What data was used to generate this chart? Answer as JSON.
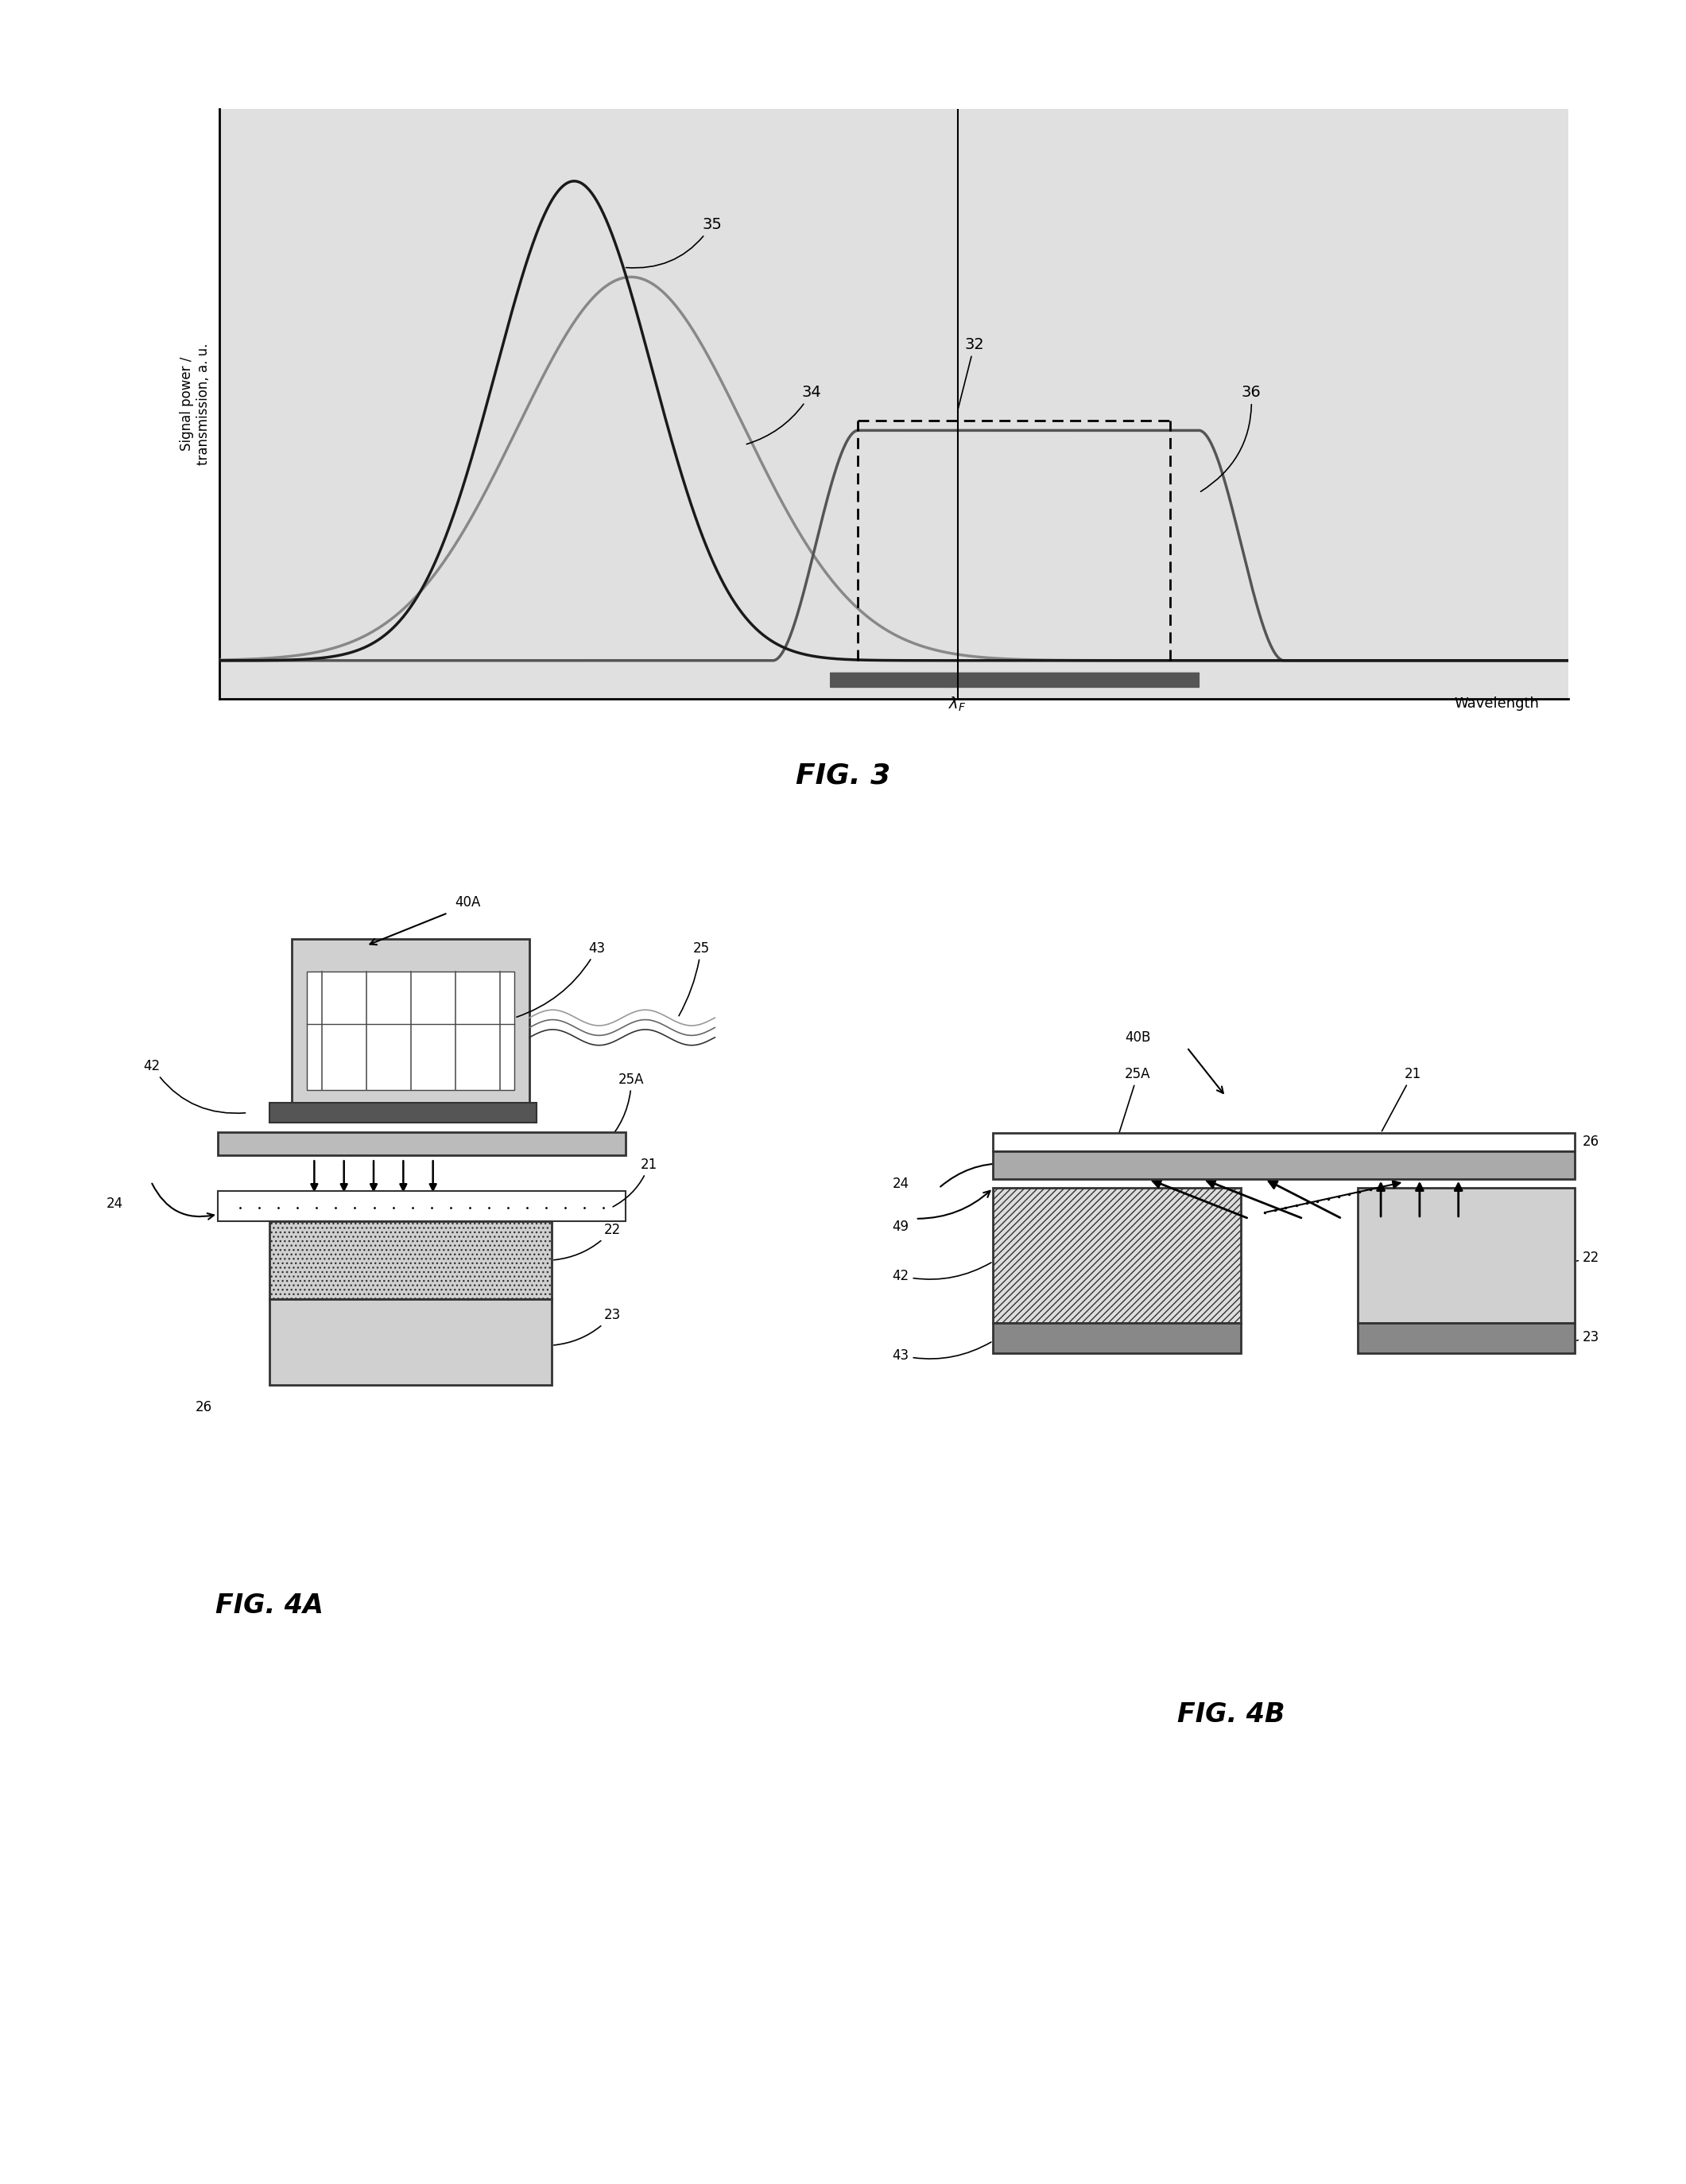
{
  "background_color": "#ffffff",
  "fig_width": 21.21,
  "fig_height": 27.47,
  "fig3_title": "FIG. 3",
  "fig4a_title": "FIG. 4A",
  "fig4b_title": "FIG. 4B",
  "ylabel": "Signal power /\ntransmission, a. u.",
  "xlabel": "Wavelength",
  "plot_bg": "#e0e0e0",
  "curve35_color": "#1a1a1a",
  "curve34_color": "#888888",
  "curve36_color": "#555555",
  "dark_gray": "#333333",
  "medium_gray": "#888888",
  "light_gray": "#bbbbbb",
  "box_fill": "#d0d0d0",
  "hatch_fill": "#cccccc"
}
